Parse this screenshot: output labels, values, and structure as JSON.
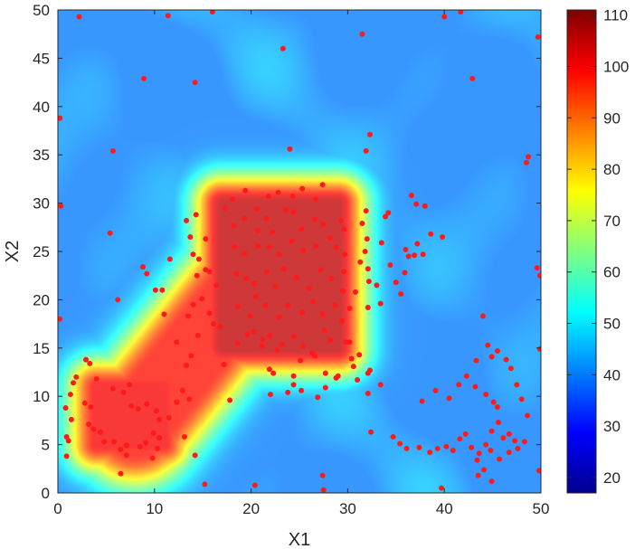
{
  "chart_data": {
    "type": "heatmap",
    "title": "",
    "xlabel": "X1",
    "ylabel": "X2",
    "xlim": [
      0,
      50
    ],
    "ylim": [
      0,
      50
    ],
    "x_ticks": [
      0,
      10,
      20,
      30,
      40,
      50
    ],
    "y_ticks": [
      0,
      5,
      10,
      15,
      20,
      25,
      30,
      35,
      40,
      45,
      50
    ],
    "colormap": "jet",
    "colorbar": {
      "range": [
        17,
        111
      ],
      "ticks": [
        20,
        30,
        40,
        50,
        60,
        70,
        80,
        90,
        100,
        110
      ]
    },
    "field_regions": [
      {
        "region": "central plateau",
        "x_range": [
          17,
          29
        ],
        "y_range": [
          15,
          30
        ],
        "value": 105
      },
      {
        "region": "diagonal band",
        "x_from": [
          8,
          7
        ],
        "x_to": [
          20,
          22
        ],
        "value": 98
      },
      {
        "region": "lower-left plateau",
        "x_range": [
          4,
          11
        ],
        "y_range": [
          5,
          11
        ],
        "value": 100
      },
      {
        "region": "background",
        "value": 40
      }
    ],
    "sample_points": {
      "color": "#ff1a1a",
      "points": [
        [
          0.2,
          38.8
        ],
        [
          0.3,
          29.7
        ],
        [
          0.2,
          18
        ],
        [
          2.2,
          49.3
        ],
        [
          8.9,
          42.9
        ],
        [
          11.4,
          49.4
        ],
        [
          14.2,
          42.5
        ],
        [
          16,
          49.8
        ],
        [
          23.3,
          46
        ],
        [
          31.5,
          47.5
        ],
        [
          40,
          49.3
        ],
        [
          41.7,
          49.8
        ],
        [
          42.9,
          42.9
        ],
        [
          49.7,
          47.2
        ],
        [
          5.7,
          35.4
        ],
        [
          24,
          35.6
        ],
        [
          32.3,
          37.1
        ],
        [
          31.9,
          35.4
        ],
        [
          48.5,
          34.2
        ],
        [
          48.7,
          34.8
        ],
        [
          49.6,
          23.3
        ],
        [
          49.9,
          22.5
        ],
        [
          49.9,
          14.9
        ],
        [
          49.8,
          2.3
        ],
        [
          5.4,
          26.9
        ],
        [
          6.2,
          20
        ],
        [
          8.8,
          23.4
        ],
        [
          9.2,
          22.7
        ],
        [
          10.1,
          21
        ],
        [
          10.8,
          21
        ],
        [
          11,
          18.5
        ],
        [
          11.6,
          24.2
        ],
        [
          13.3,
          28.2
        ],
        [
          14.3,
          28.8
        ],
        [
          13.7,
          26.5
        ],
        [
          14,
          24.7
        ],
        [
          14.6,
          24.2
        ],
        [
          15.3,
          26.3
        ],
        [
          14.4,
          22.5
        ],
        [
          15.3,
          23.1
        ],
        [
          14,
          19.5
        ],
        [
          13.5,
          18.3
        ],
        [
          12.3,
          15.6
        ],
        [
          14.5,
          16.3
        ],
        [
          13.8,
          14.2
        ],
        [
          13.3,
          13.2
        ],
        [
          17.3,
          29.5
        ],
        [
          18.1,
          30.4
        ],
        [
          19.4,
          31.3
        ],
        [
          20.6,
          29.4
        ],
        [
          21.8,
          30.7
        ],
        [
          22.8,
          31.1
        ],
        [
          24.3,
          30.7
        ],
        [
          25.3,
          31.5
        ],
        [
          26.7,
          30.4
        ],
        [
          27.4,
          31.9
        ],
        [
          18.2,
          27.7
        ],
        [
          19.3,
          28.4
        ],
        [
          20.7,
          27.2
        ],
        [
          21.6,
          28.4
        ],
        [
          22.2,
          27
        ],
        [
          23.6,
          29.3
        ],
        [
          24.4,
          29.1
        ],
        [
          25.2,
          27.3
        ],
        [
          26.6,
          28.3
        ],
        [
          27.5,
          27.8
        ],
        [
          18.3,
          25.5
        ],
        [
          19.3,
          24.8
        ],
        [
          20.7,
          25.6
        ],
        [
          21.9,
          25.5
        ],
        [
          22.9,
          24.7
        ],
        [
          24.2,
          26.1
        ],
        [
          25.4,
          25.1
        ],
        [
          26.7,
          25.6
        ],
        [
          28.2,
          26.4
        ],
        [
          28.8,
          25.4
        ],
        [
          18.5,
          22.7
        ],
        [
          19.5,
          22.2
        ],
        [
          20.3,
          21.7
        ],
        [
          21.6,
          22.9
        ],
        [
          22.5,
          21.4
        ],
        [
          23.4,
          23.2
        ],
        [
          24.7,
          22.3
        ],
        [
          26,
          21.2
        ],
        [
          27.2,
          23.1
        ],
        [
          28.3,
          22.2
        ],
        [
          18.6,
          19.3
        ],
        [
          19.9,
          18.3
        ],
        [
          20.5,
          20.3
        ],
        [
          21.5,
          19.4
        ],
        [
          22.9,
          18.2
        ],
        [
          23.8,
          19.4
        ],
        [
          25.3,
          18.7
        ],
        [
          26.4,
          19.8
        ],
        [
          27.4,
          18.5
        ],
        [
          28.7,
          19.4
        ],
        [
          20.3,
          16.7
        ],
        [
          21.1,
          15.2
        ],
        [
          21.9,
          16.3
        ],
        [
          23.2,
          15.4
        ],
        [
          24.4,
          16.2
        ],
        [
          25.4,
          15.2
        ],
        [
          26.3,
          14.5
        ],
        [
          27.6,
          16.8
        ],
        [
          28.2,
          15.8
        ],
        [
          29.3,
          28.2
        ],
        [
          29.6,
          27.3
        ],
        [
          29.7,
          24.7
        ],
        [
          29.6,
          22.9
        ],
        [
          29.5,
          20.9
        ],
        [
          30.8,
          20.8
        ],
        [
          29.4,
          17.8
        ],
        [
          29.8,
          15.6
        ],
        [
          30.2,
          19.1
        ],
        [
          31.5,
          27.9
        ],
        [
          31.9,
          29.2
        ],
        [
          32,
          26.3
        ],
        [
          31.8,
          25
        ],
        [
          32.1,
          23.2
        ],
        [
          31.3,
          23.9
        ],
        [
          32.2,
          21.9
        ],
        [
          33,
          21.5
        ],
        [
          32.1,
          19.2
        ],
        [
          33.9,
          28.6
        ],
        [
          34.2,
          29
        ],
        [
          33.5,
          25.9
        ],
        [
          34.4,
          23.6
        ],
        [
          33.4,
          19.6
        ],
        [
          35,
          21.8
        ],
        [
          35.5,
          20.6
        ],
        [
          36,
          25.2
        ],
        [
          36.3,
          24.5
        ],
        [
          37.2,
          25.8
        ],
        [
          36.6,
          30.8
        ],
        [
          37.1,
          29.9
        ],
        [
          38,
          29.7
        ],
        [
          38.6,
          26.8
        ],
        [
          39.8,
          26.5
        ],
        [
          35.9,
          22.8
        ],
        [
          36.9,
          24.6
        ],
        [
          37.8,
          24.7
        ],
        [
          15.7,
          22.9
        ],
        [
          16.4,
          21.5
        ],
        [
          14.9,
          20.1
        ],
        [
          15.7,
          18.6
        ],
        [
          16.1,
          17.5
        ],
        [
          16.8,
          17.2
        ],
        [
          17.2,
          13.3
        ],
        [
          18.6,
          15.5
        ],
        [
          19.6,
          16.4
        ],
        [
          21.2,
          15.9
        ],
        [
          22.3,
          12.4
        ],
        [
          22.7,
          14.8
        ],
        [
          24.4,
          12.1
        ],
        [
          25.1,
          13.7
        ],
        [
          26.6,
          14.2
        ],
        [
          27.7,
          12.4
        ],
        [
          29,
          12.1
        ],
        [
          21.9,
          12.8
        ],
        [
          22,
          10.2
        ],
        [
          23.8,
          10.4
        ],
        [
          24.4,
          11.2
        ],
        [
          25.2,
          10.6
        ],
        [
          27.7,
          10.9
        ],
        [
          26.9,
          9.9
        ],
        [
          28.8,
          11.9
        ],
        [
          31,
          11.7
        ],
        [
          32.1,
          12.4
        ],
        [
          32.1,
          10.3
        ],
        [
          32.3,
          12.7
        ],
        [
          33.4,
          11.2
        ],
        [
          30.2,
          15.6
        ],
        [
          30.4,
          13.9
        ],
        [
          31.2,
          14.3
        ],
        [
          30.6,
          13.1
        ],
        [
          4,
          11.8
        ],
        [
          3.3,
          13.4
        ],
        [
          2.9,
          13.8
        ],
        [
          1.9,
          12
        ],
        [
          1.6,
          11.4
        ],
        [
          1.3,
          10.2
        ],
        [
          0.8,
          8.8
        ],
        [
          1.4,
          7.6
        ],
        [
          0.9,
          5.8
        ],
        [
          1.1,
          5.4
        ],
        [
          0.9,
          3.8
        ],
        [
          2.8,
          9.3
        ],
        [
          3.4,
          8.9
        ],
        [
          3.2,
          7.1
        ],
        [
          3.7,
          6.6
        ],
        [
          4.4,
          6.3
        ],
        [
          4.8,
          5.3
        ],
        [
          5.8,
          5.3
        ],
        [
          6.5,
          4.5
        ],
        [
          7.1,
          4.9
        ],
        [
          8.5,
          4.8
        ],
        [
          5.7,
          10.8
        ],
        [
          6.8,
          10.4
        ],
        [
          7.4,
          11.2
        ],
        [
          7.6,
          9
        ],
        [
          8.3,
          8.7
        ],
        [
          9.2,
          9.2
        ],
        [
          10.2,
          8.5
        ],
        [
          10.5,
          7.6
        ],
        [
          9.9,
          6.2
        ],
        [
          10.3,
          4.6
        ],
        [
          6.5,
          2
        ],
        [
          7.1,
          3.9
        ],
        [
          9.1,
          5.2
        ],
        [
          9.8,
          3.6
        ],
        [
          10.5,
          5.7
        ],
        [
          11.5,
          7.8
        ],
        [
          12.3,
          9.4
        ],
        [
          12.9,
          10.6
        ],
        [
          13.6,
          9.7
        ],
        [
          13.1,
          5.8
        ],
        [
          14.2,
          3.9
        ],
        [
          15.2,
          0.9
        ],
        [
          17.8,
          9.6
        ],
        [
          20.4,
          0.8
        ],
        [
          27.4,
          1.8
        ],
        [
          27.5,
          0.3
        ],
        [
          39.7,
          0.5
        ],
        [
          44.9,
          1.2
        ],
        [
          32.4,
          6.3
        ],
        [
          34.7,
          5.8
        ],
        [
          35.4,
          5.1
        ],
        [
          36.1,
          4.6
        ],
        [
          37.4,
          4.7
        ],
        [
          38.5,
          4.2
        ],
        [
          39.3,
          4.6
        ],
        [
          40.2,
          4.8
        ],
        [
          40.9,
          4.4
        ],
        [
          41.6,
          5.6
        ],
        [
          42.2,
          6.1
        ],
        [
          42.8,
          4.7
        ],
        [
          43.6,
          4.1
        ],
        [
          44.3,
          5
        ],
        [
          44.9,
          6.4
        ],
        [
          45.6,
          7.3
        ],
        [
          46.1,
          5.7
        ],
        [
          46.7,
          6.1
        ],
        [
          47.3,
          5.4
        ],
        [
          48.3,
          5.3
        ],
        [
          37.7,
          9.5
        ],
        [
          39.1,
          10.6
        ],
        [
          40.5,
          9.8
        ],
        [
          41.5,
          11.2
        ],
        [
          42.3,
          12.1
        ],
        [
          43.2,
          11
        ],
        [
          44.3,
          10.2
        ],
        [
          45.1,
          9.4
        ],
        [
          45.5,
          8.9
        ],
        [
          44.5,
          15.3
        ],
        [
          44.9,
          14.1
        ],
        [
          45.5,
          14.7
        ],
        [
          46.4,
          13.8
        ],
        [
          46.9,
          12.9
        ],
        [
          47.5,
          11.2
        ],
        [
          48,
          9.7
        ],
        [
          48.6,
          8
        ],
        [
          44,
          18.3
        ],
        [
          43.3,
          13.7
        ],
        [
          44.1,
          2.4
        ],
        [
          45.7,
          3.5
        ],
        [
          46.7,
          4.2
        ],
        [
          47.6,
          4.6
        ],
        [
          44.8,
          4.4
        ],
        [
          43.5,
          1.8
        ],
        [
          43.4,
          3.4
        ]
      ]
    }
  }
}
